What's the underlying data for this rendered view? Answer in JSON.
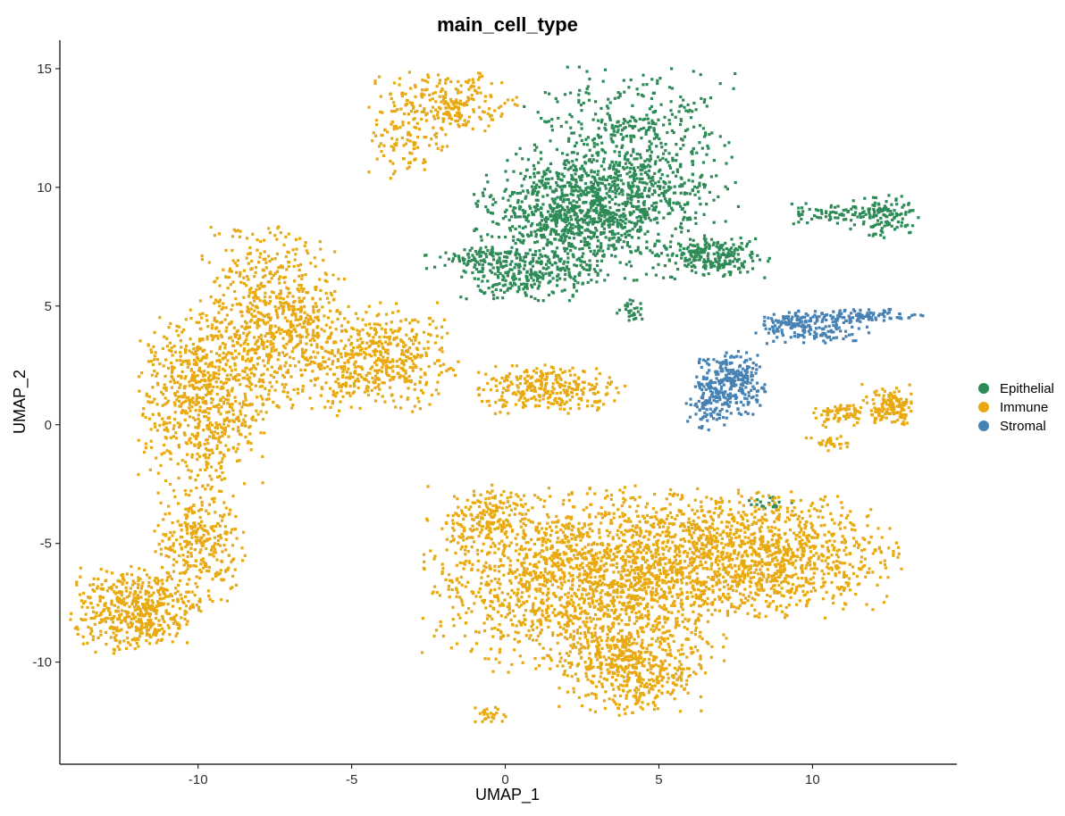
{
  "chart_data": {
    "type": "scatter",
    "title": "main_cell_type",
    "xlabel": "UMAP_1",
    "ylabel": "UMAP_2",
    "xlim": [
      -14.5,
      14.7
    ],
    "ylim": [
      -14.3,
      16.2
    ],
    "xticks": [
      -10,
      -5,
      0,
      5,
      10
    ],
    "yticks": [
      15,
      10,
      5,
      0,
      -5,
      -10
    ],
    "xtick_labels": [
      "-10",
      "-5",
      "0",
      "5",
      "10"
    ],
    "ytick_labels": [
      "15",
      "10",
      "5",
      "0",
      "-5",
      "-10"
    ],
    "grid": false,
    "legend_position": "right",
    "series": [
      {
        "name": "Epithelial",
        "color": "#2e8b57",
        "clusters": [
          {
            "cx": 4.0,
            "cy": 10.5,
            "rx": 2.4,
            "ry": 3.0,
            "n": 900
          },
          {
            "cx": 2.0,
            "cy": 8.8,
            "rx": 2.0,
            "ry": 1.6,
            "n": 700
          },
          {
            "cx": 6.8,
            "cy": 7.1,
            "rx": 1.2,
            "ry": 0.6,
            "n": 220
          },
          {
            "cx": 0.8,
            "cy": 6.3,
            "rx": 1.6,
            "ry": 0.8,
            "n": 250
          },
          {
            "cx": -0.8,
            "cy": 7.0,
            "rx": 1.2,
            "ry": 0.3,
            "n": 90
          },
          {
            "cx": 12.3,
            "cy": 8.8,
            "rx": 0.8,
            "ry": 0.6,
            "n": 130
          },
          {
            "cx": 10.5,
            "cy": 8.9,
            "rx": 0.9,
            "ry": 0.3,
            "n": 60
          },
          {
            "cx": 4.1,
            "cy": 4.8,
            "rx": 0.3,
            "ry": 0.3,
            "n": 30
          },
          {
            "cx": 8.6,
            "cy": -3.3,
            "rx": 0.5,
            "ry": 0.2,
            "n": 20
          }
        ]
      },
      {
        "name": "Immune",
        "color": "#e8a911",
        "clusters": [
          {
            "cx": -2.0,
            "cy": 13.5,
            "rx": 1.6,
            "ry": 1.0,
            "n": 260
          },
          {
            "cx": -3.2,
            "cy": 11.6,
            "rx": 1.0,
            "ry": 0.8,
            "n": 70
          },
          {
            "cx": -7.5,
            "cy": 4.5,
            "rx": 1.6,
            "ry": 2.6,
            "n": 700
          },
          {
            "cx": -9.8,
            "cy": 1.0,
            "rx": 1.4,
            "ry": 2.6,
            "n": 700
          },
          {
            "cx": -4.2,
            "cy": 2.8,
            "rx": 1.8,
            "ry": 1.6,
            "n": 500
          },
          {
            "cx": -10.0,
            "cy": -5.0,
            "rx": 1.0,
            "ry": 1.6,
            "n": 300
          },
          {
            "cx": -12.0,
            "cy": -7.8,
            "rx": 1.4,
            "ry": 1.2,
            "n": 500
          },
          {
            "cx": 1.5,
            "cy": 1.5,
            "rx": 1.6,
            "ry": 0.7,
            "n": 300
          },
          {
            "cx": 2.5,
            "cy": -6.5,
            "rx": 3.4,
            "ry": 2.6,
            "n": 1700
          },
          {
            "cx": 8.0,
            "cy": -5.5,
            "rx": 3.2,
            "ry": 1.8,
            "n": 1300
          },
          {
            "cx": 4.2,
            "cy": -10.2,
            "rx": 1.6,
            "ry": 1.4,
            "n": 500
          },
          {
            "cx": -0.5,
            "cy": -4.0,
            "rx": 0.9,
            "ry": 1.0,
            "n": 150
          },
          {
            "cx": 12.5,
            "cy": 0.8,
            "rx": 0.6,
            "ry": 0.6,
            "n": 140
          },
          {
            "cx": 11.0,
            "cy": 0.5,
            "rx": 0.8,
            "ry": 0.4,
            "n": 70
          },
          {
            "cx": 10.6,
            "cy": -0.8,
            "rx": 0.6,
            "ry": 0.3,
            "n": 30
          },
          {
            "cx": -0.5,
            "cy": -12.2,
            "rx": 0.4,
            "ry": 0.3,
            "n": 25
          }
        ]
      },
      {
        "name": "Stromal",
        "color": "#4682b4",
        "clusters": [
          {
            "cx": 7.3,
            "cy": 1.8,
            "rx": 0.8,
            "ry": 0.9,
            "n": 280
          },
          {
            "cx": 6.6,
            "cy": 0.7,
            "rx": 0.5,
            "ry": 0.6,
            "n": 70
          },
          {
            "cx": 10.0,
            "cy": 4.0,
            "rx": 1.2,
            "ry": 0.4,
            "n": 130
          },
          {
            "cx": 11.5,
            "cy": 4.6,
            "rx": 1.4,
            "ry": 0.2,
            "n": 110
          },
          {
            "cx": 9.2,
            "cy": 4.4,
            "rx": 0.5,
            "ry": 0.3,
            "n": 50
          }
        ]
      }
    ]
  }
}
